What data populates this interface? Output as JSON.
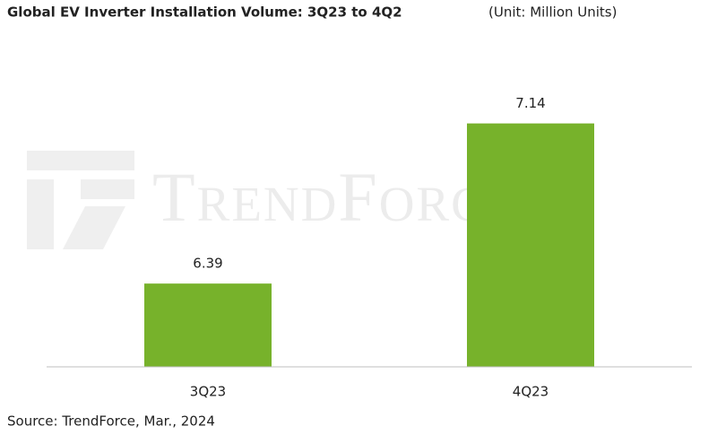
{
  "chart_data": {
    "type": "bar",
    "title": "Global EV Inverter Installation Volume: 3Q23 to 4Q2",
    "unit": "(Unit: Million Units)",
    "source": "Source: TrendForce, Mar., 2024",
    "watermark": "TrendForce",
    "categories": [
      "3Q23",
      "4Q23"
    ],
    "values": [
      6.39,
      7.14
    ],
    "color": "#77b22b",
    "ylim": [
      6.0,
      7.55
    ]
  }
}
